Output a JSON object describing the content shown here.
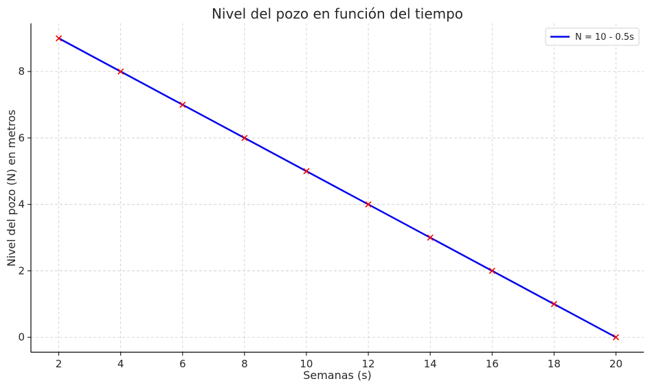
{
  "chart_data": {
    "type": "line",
    "title": "Nivel del pozo en función del tiempo",
    "xlabel": "Semanas (s)",
    "ylabel": "Nivel del pozo (N) en metros",
    "xlim": [
      1.1,
      20.9
    ],
    "ylim": [
      -0.45,
      9.45
    ],
    "xticks": [
      2,
      4,
      6,
      8,
      10,
      12,
      14,
      16,
      18,
      20
    ],
    "yticks": [
      0,
      2,
      4,
      6,
      8
    ],
    "grid": true,
    "legend_position": "top-right",
    "series": [
      {
        "name": "N = 10 - 0.5s",
        "type": "line",
        "color": "#0000ee",
        "x": [
          2,
          20
        ],
        "y": [
          9,
          0
        ]
      },
      {
        "type": "scatter",
        "marker": "x",
        "color": "#ee0000",
        "x": [
          2,
          4,
          6,
          8,
          10,
          12,
          14,
          16,
          18,
          20
        ],
        "y": [
          9,
          8,
          7,
          6,
          5,
          4,
          3,
          2,
          1,
          0
        ]
      }
    ]
  }
}
